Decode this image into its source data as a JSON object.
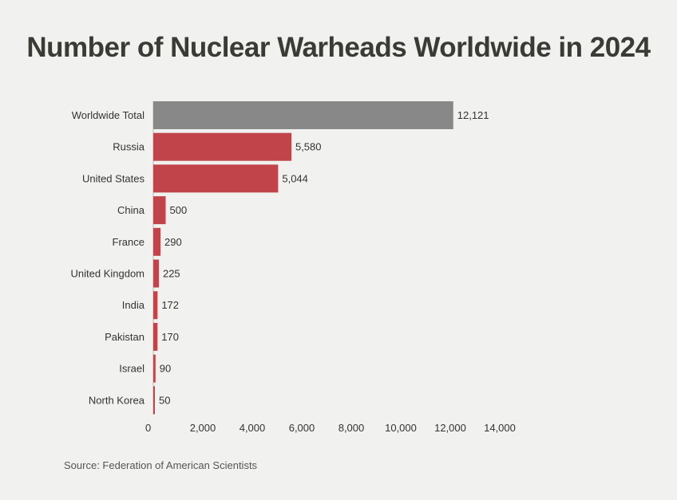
{
  "colors": {
    "total_bar": "#888888",
    "country_bar": "#c1444a",
    "background": "#f1f1ef",
    "text": "#333333"
  },
  "source": "Source: Federation of American Scientists",
  "chart_data": {
    "type": "bar",
    "orientation": "horizontal",
    "title": "Number of Nuclear Warheads Worldwide in 2024",
    "xlabel": "",
    "ylabel": "",
    "xlim": [
      0,
      14000
    ],
    "x_ticks": [
      0,
      2000,
      4000,
      6000,
      8000,
      10000,
      12000,
      14000
    ],
    "x_tick_labels": [
      "0",
      "2,000",
      "4,000",
      "6,000",
      "8,000",
      "10,000",
      "12,000",
      "14,000"
    ],
    "grid": false,
    "categories": [
      "Worldwide Total",
      "Russia",
      "United States",
      "China",
      "France",
      "United Kingdom",
      "India",
      "Pakistan",
      "Israel",
      "North Korea"
    ],
    "values": [
      12121,
      5580,
      5044,
      500,
      290,
      225,
      172,
      170,
      90,
      50
    ],
    "value_labels": [
      "12,121",
      "5,580",
      "5,044",
      "500",
      "290",
      "225",
      "172",
      "170",
      "90",
      "50"
    ]
  }
}
